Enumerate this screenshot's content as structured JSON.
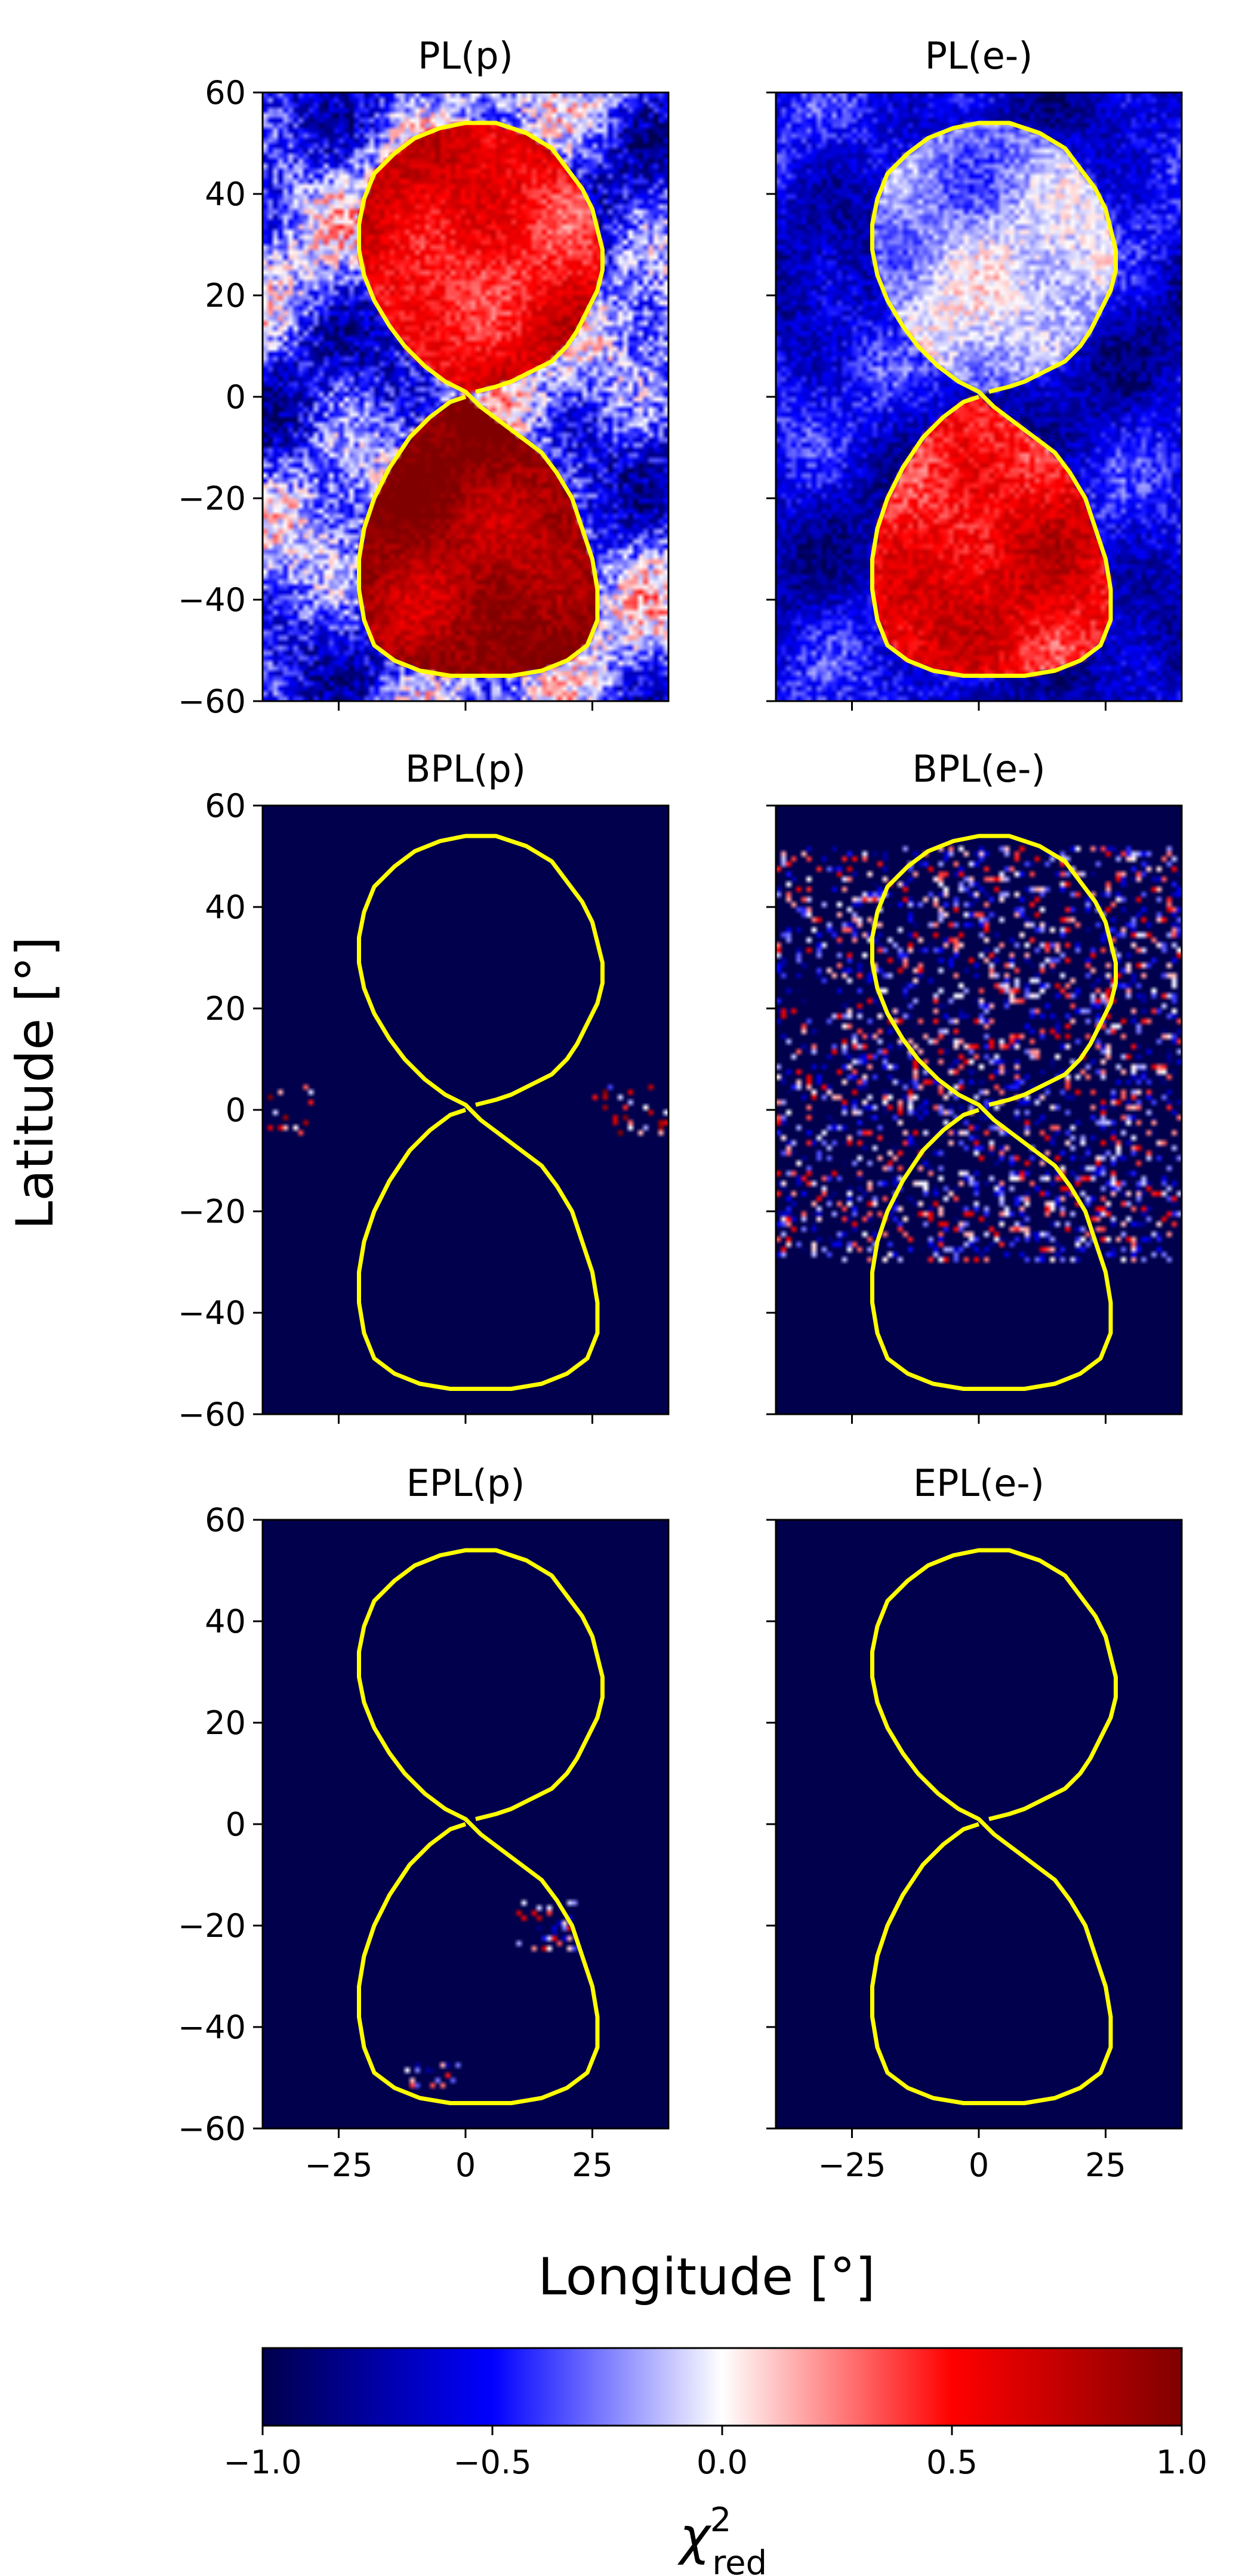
{
  "figure": {
    "ylabel": "Latitude [°]",
    "xlabel": "Longitude [°]"
  },
  "chart_data": [
    {
      "type": "heatmap",
      "title": "PL(p)",
      "xlim": [
        -40,
        40
      ],
      "ylim": [
        -60,
        60
      ],
      "xticks": [
        -25,
        0,
        25
      ],
      "yticks": [
        -60,
        -40,
        -20,
        0,
        20,
        40,
        60
      ],
      "show_xticklabels": false,
      "show_yticklabels": true,
      "field": "strong positive (red) in both lobes of the figure-eight, strongest in southern lobe; mixed blue/white outside",
      "intensity": 1.0,
      "background_value": -0.35
    },
    {
      "type": "heatmap",
      "title": "PL(e-)",
      "xlim": [
        -40,
        40
      ],
      "ylim": [
        -60,
        60
      ],
      "xticks": [
        -25,
        0,
        25
      ],
      "yticks": [
        -60,
        -40,
        -20,
        0,
        20,
        40,
        60
      ],
      "show_xticklabels": false,
      "show_yticklabels": false,
      "field": "positive (red) in southern lobe, mixed in northern lobe; mostly blue outside",
      "intensity": 0.8,
      "background_value": -0.6
    },
    {
      "type": "heatmap",
      "title": "BPL(p)",
      "xlim": [
        -40,
        40
      ],
      "ylim": [
        -60,
        60
      ],
      "xticks": [
        -25,
        0,
        25
      ],
      "yticks": [
        -60,
        -40,
        -20,
        0,
        20,
        40,
        60
      ],
      "show_xticklabels": false,
      "show_yticklabels": true,
      "field": "uniform -1 with a few sparse bright pixels near latitude 0",
      "intensity": 0.05,
      "background_value": -1.0
    },
    {
      "type": "heatmap",
      "title": "BPL(e-)",
      "xlim": [
        -40,
        40
      ],
      "ylim": [
        -60,
        60
      ],
      "xticks": [
        -25,
        0,
        25
      ],
      "yticks": [
        -60,
        -40,
        -20,
        0,
        20,
        40,
        60
      ],
      "show_xticklabels": false,
      "show_yticklabels": false,
      "field": "mostly -1 with scattered blue/white speckle between latitude -25 and 50",
      "intensity": 0.3,
      "background_value": -1.0
    },
    {
      "type": "heatmap",
      "title": "EPL(p)",
      "xlim": [
        -40,
        40
      ],
      "ylim": [
        -60,
        60
      ],
      "xticks": [
        -25,
        0,
        25
      ],
      "yticks": [
        -60,
        -40,
        -20,
        0,
        20,
        40,
        60
      ],
      "show_xticklabels": true,
      "show_yticklabels": true,
      "field": "nearly uniform -1 with a few faint pixels near latitude -20 and -50",
      "intensity": 0.04,
      "background_value": -1.0
    },
    {
      "type": "heatmap",
      "title": "EPL(e-)",
      "xlim": [
        -40,
        40
      ],
      "ylim": [
        -60,
        60
      ],
      "xticks": [
        -25,
        0,
        25
      ],
      "yticks": [
        -60,
        -40,
        -20,
        0,
        20,
        40,
        60
      ],
      "show_xticklabels": true,
      "show_yticklabels": false,
      "field": "uniform -1",
      "intensity": 0.0,
      "background_value": -1.0
    }
  ],
  "outline": {
    "color": "#ffff00",
    "points": [
      [
        2,
        1
      ],
      [
        6,
        2
      ],
      [
        9,
        3
      ],
      [
        13,
        5
      ],
      [
        17,
        7
      ],
      [
        20,
        10
      ],
      [
        22,
        13
      ],
      [
        24,
        17
      ],
      [
        26,
        21
      ],
      [
        27,
        25
      ],
      [
        27,
        29
      ],
      [
        26,
        33
      ],
      [
        25,
        37
      ],
      [
        23,
        41
      ],
      [
        20,
        45
      ],
      [
        17,
        49
      ],
      [
        12,
        52
      ],
      [
        6,
        54
      ],
      [
        0,
        54
      ],
      [
        -5,
        53
      ],
      [
        -10,
        51
      ],
      [
        -14,
        48
      ],
      [
        -18,
        44
      ],
      [
        -20,
        39
      ],
      [
        -21,
        34
      ],
      [
        -21,
        29
      ],
      [
        -20,
        24
      ],
      [
        -18,
        19
      ],
      [
        -15,
        14
      ],
      [
        -12,
        10
      ],
      [
        -8,
        6
      ],
      [
        -4,
        3
      ],
      [
        0,
        1
      ],
      [
        3,
        -2
      ],
      [
        7,
        -5
      ],
      [
        11,
        -8
      ],
      [
        15,
        -11
      ],
      [
        18,
        -15
      ],
      [
        21,
        -20
      ],
      [
        23,
        -26
      ],
      [
        25,
        -32
      ],
      [
        26,
        -38
      ],
      [
        26,
        -44
      ],
      [
        24,
        -49
      ],
      [
        20,
        -52
      ],
      [
        15,
        -54
      ],
      [
        9,
        -55
      ],
      [
        3,
        -55
      ],
      [
        -3,
        -55
      ],
      [
        -9,
        -54
      ],
      [
        -14,
        -52
      ],
      [
        -18,
        -49
      ],
      [
        -20,
        -44
      ],
      [
        -21,
        -38
      ],
      [
        -21,
        -32
      ],
      [
        -20,
        -26
      ],
      [
        -18,
        -20
      ],
      [
        -15,
        -14
      ],
      [
        -11,
        -8
      ],
      [
        -7,
        -4
      ],
      [
        -3,
        -1
      ],
      [
        0,
        0
      ]
    ]
  },
  "colorbar": {
    "label_base": "χ",
    "label_sup": "2",
    "label_sub": "red",
    "vmin": -1.0,
    "vmax": 1.0,
    "ticks": [
      "−1.0",
      "−0.5",
      "0.0",
      "0.5",
      "1.0"
    ],
    "tick_values": [
      -1.0,
      -0.5,
      0.0,
      0.5,
      1.0
    ],
    "colormap": "seismic",
    "stops": [
      "#00004c",
      "#0000ff",
      "#ffffff",
      "#ff0000",
      "#800000"
    ]
  }
}
